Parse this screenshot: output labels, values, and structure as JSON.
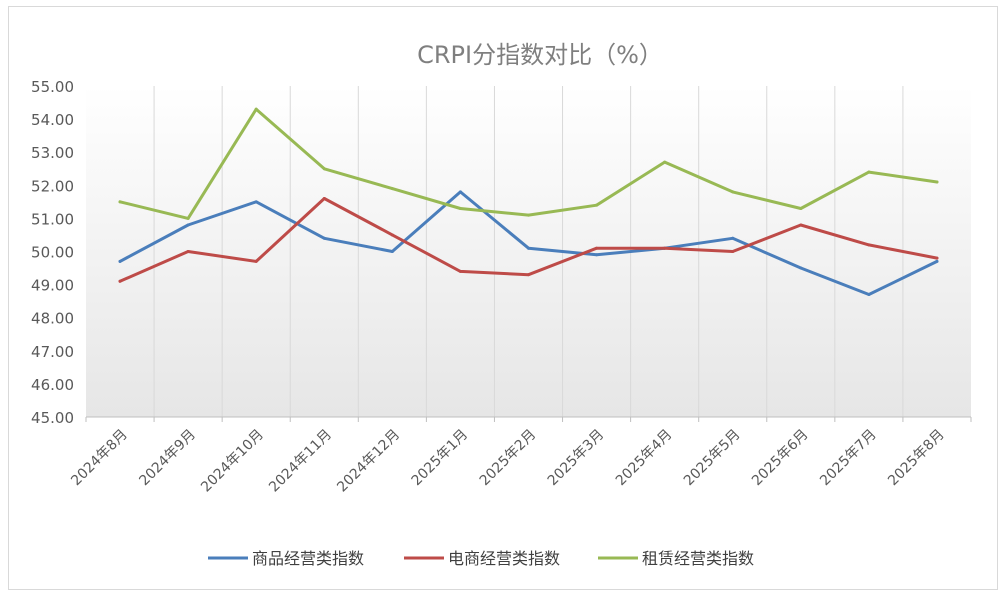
{
  "chart_data": {
    "type": "line",
    "title": "CRPI分指数对比（%）",
    "xlabel": "",
    "ylabel": "",
    "categories": [
      "2024年8月",
      "2024年9月",
      "2024年10月",
      "2024年11月",
      "2024年12月",
      "2025年1月",
      "2025年2月",
      "2025年3月",
      "2025年4月",
      "2025年5月",
      "2025年6月",
      "2025年7月",
      "2025年8月"
    ],
    "ylim": [
      45,
      55
    ],
    "yticks": [
      "45.00",
      "46.00",
      "47.00",
      "48.00",
      "49.00",
      "50.00",
      "51.00",
      "52.00",
      "53.00",
      "54.00",
      "55.00"
    ],
    "grid": "vertical",
    "legend": "bottom",
    "series": [
      {
        "name": "商品经营类指数",
        "color": "#4a7ebb",
        "values": [
          49.7,
          50.8,
          51.5,
          50.4,
          50.0,
          51.8,
          50.1,
          49.9,
          50.1,
          50.4,
          49.5,
          48.7,
          49.7
        ]
      },
      {
        "name": "电商经营类指数",
        "color": "#be4b48",
        "values": [
          49.1,
          50.0,
          49.7,
          51.6,
          50.5,
          49.4,
          49.3,
          50.1,
          50.1,
          50.0,
          50.8,
          50.2,
          49.8
        ]
      },
      {
        "name": "租赁经营类指数",
        "color": "#98b954",
        "values": [
          51.5,
          51.0,
          54.3,
          52.5,
          51.9,
          51.3,
          51.1,
          51.4,
          52.7,
          51.8,
          51.3,
          52.4,
          52.1
        ]
      }
    ]
  }
}
